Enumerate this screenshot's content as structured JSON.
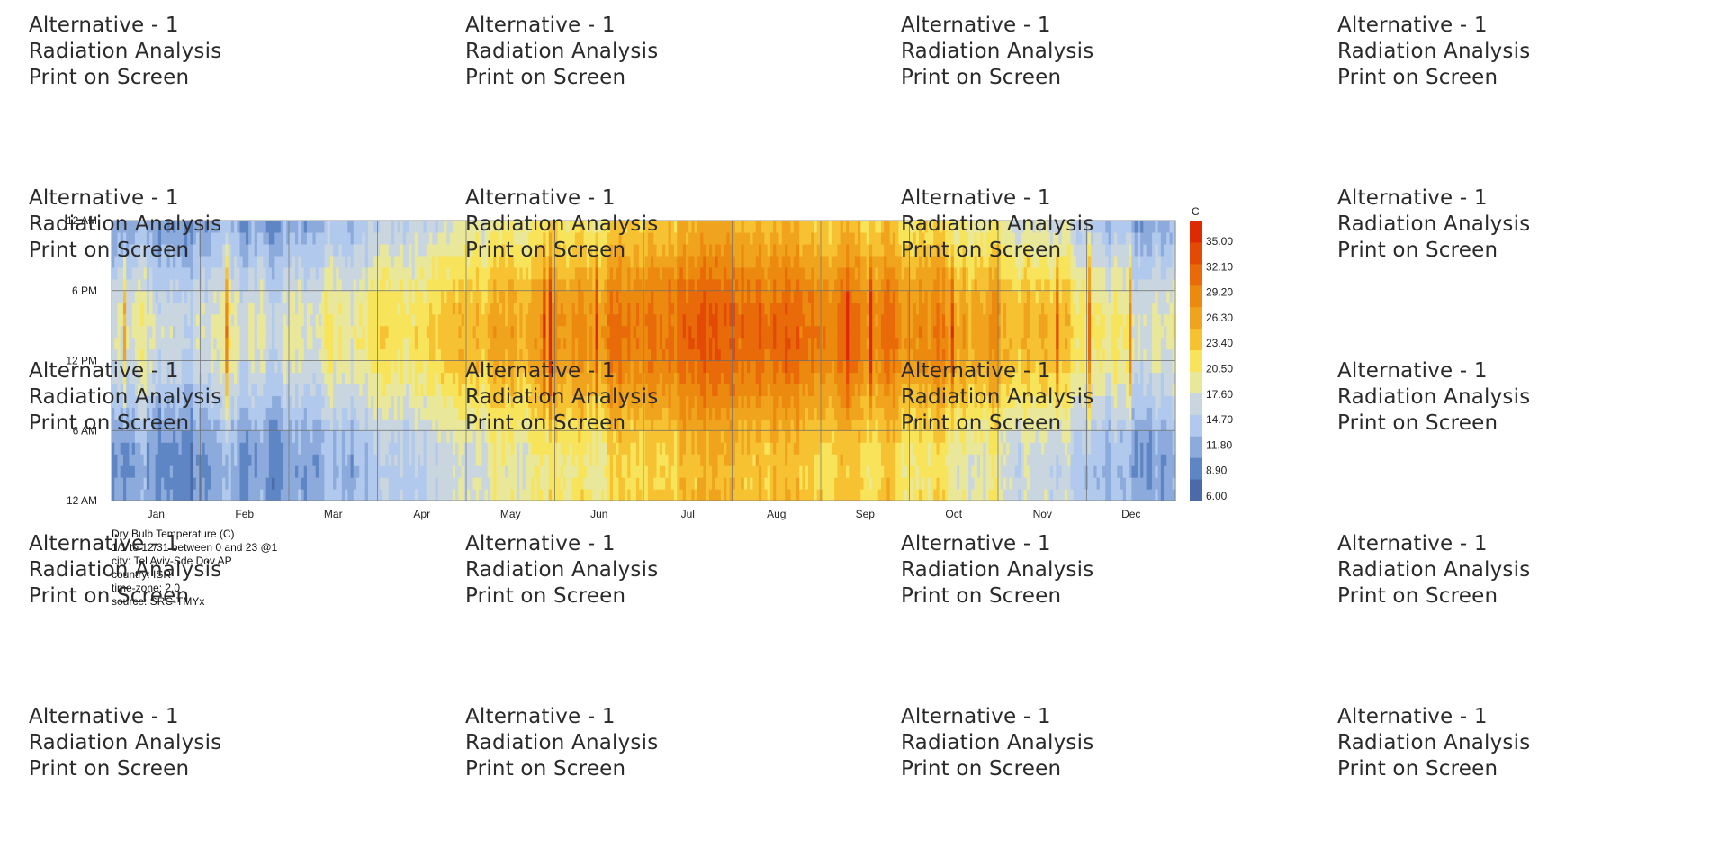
{
  "watermark": {
    "lines": [
      "Alternative - 1",
      "Radiation Analysis",
      "Print on Screen"
    ]
  },
  "chart_data": {
    "type": "heatmap",
    "x_categories": [
      "Jan",
      "Feb",
      "Mar",
      "Apr",
      "May",
      "Jun",
      "Jul",
      "Aug",
      "Sep",
      "Oct",
      "Nov",
      "Dec"
    ],
    "y_tick_labels": [
      "12 AM",
      "6 AM",
      "12 PM",
      "6 PM",
      "12 AM"
    ],
    "y_range_hours": [
      0,
      24
    ],
    "legend": {
      "unit": "C",
      "ticks": [
        "35.00",
        "32.10",
        "29.20",
        "26.30",
        "23.40",
        "20.50",
        "17.60",
        "14.70",
        "11.80",
        "8.90",
        "6.00"
      ],
      "min": 6.0,
      "max": 37.0,
      "colors": [
        "#4a6aa8",
        "#5f86c4",
        "#8cabdc",
        "#b0c9ec",
        "#c9d6df",
        "#e9e89a",
        "#f8e45a",
        "#f6c232",
        "#f0a41e",
        "#ec8a10",
        "#e86a08",
        "#e34a05",
        "#dc2a02"
      ]
    },
    "monthly_mean_low": [
      10.5,
      11.0,
      12.5,
      15.0,
      18.0,
      21.0,
      23.5,
      24.0,
      23.0,
      20.0,
      16.0,
      12.5
    ],
    "monthly_mean_high": [
      17.5,
      18.0,
      19.5,
      22.0,
      25.0,
      28.5,
      31.0,
      31.5,
      30.0,
      28.0,
      24.0,
      19.5
    ],
    "grid": true,
    "info_lines": [
      "Dry Bulb Temperature (C)",
      "1/1 to 12/31 between 0 and 23 @1",
      "city: Tel Aviv-Sde Dov AP",
      "country: ISR",
      "time-zone: 2.0",
      "source: SRC-TMYx"
    ]
  }
}
